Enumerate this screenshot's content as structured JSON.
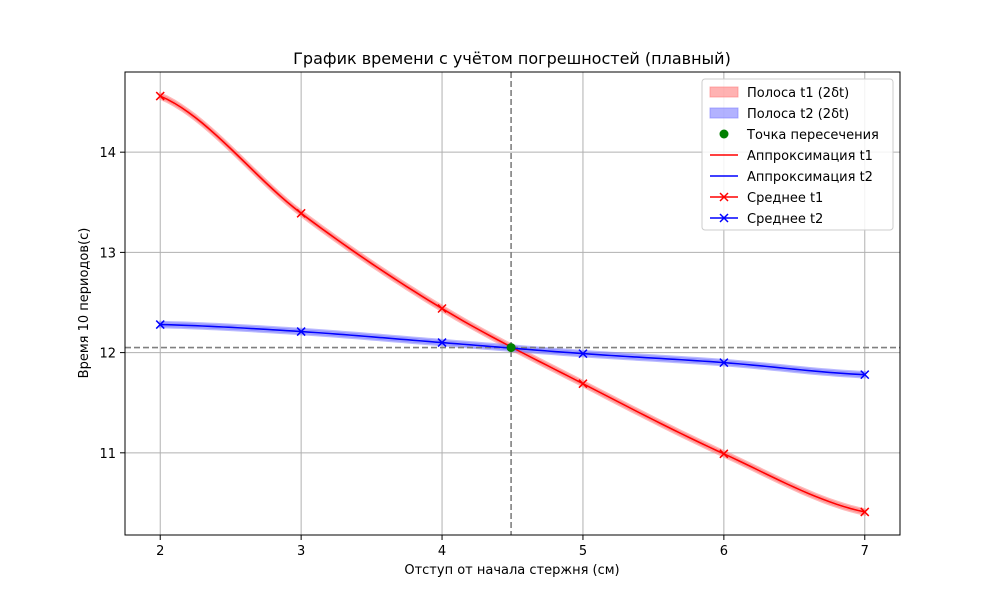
{
  "chart_data": {
    "type": "line",
    "title": "График времени с учётом погрешностей (плавный)",
    "xlabel": "Отступ от начала стержня (см)",
    "ylabel": "Время 10 периодов(с)",
    "xlim": [
      1.75,
      7.25
    ],
    "ylim": [
      10.18,
      14.8
    ],
    "xticks": [
      "2",
      "3",
      "4",
      "5",
      "6",
      "7"
    ],
    "yticks": [
      "11",
      "12",
      "13",
      "14"
    ],
    "grid": true,
    "legend_position": "top-right",
    "x": [
      2,
      3,
      4,
      5,
      6,
      7
    ],
    "series": [
      {
        "name": "Среднее t1",
        "values": [
          14.56,
          13.39,
          12.44,
          11.69,
          10.99,
          10.41
        ],
        "color": "#ff0000",
        "marker": "x"
      },
      {
        "name": "Среднее t2",
        "values": [
          12.28,
          12.21,
          12.1,
          11.99,
          11.9,
          11.78
        ],
        "color": "#0000ff",
        "marker": "x"
      }
    ],
    "fits": [
      {
        "name": "Аппроксимация t1",
        "color": "#ff0000"
      },
      {
        "name": "Аппроксимация t2",
        "color": "#0000ff"
      }
    ],
    "bands": [
      {
        "name": "Полоса t1 (2δt)",
        "half_width": 0.025,
        "color": "#ff7f7f"
      },
      {
        "name": "Полоса t2 (2δt)",
        "half_width": 0.025,
        "color": "#7f7fff"
      }
    ],
    "intersection": {
      "name": "Точка пересечения",
      "x": 4.49,
      "y": 12.05,
      "color": "#008000"
    },
    "legend": [
      "Полоса t1 (2δt)",
      "Полоса t2 (2δt)",
      "Точка пересечения",
      "Аппроксимация t1",
      "Аппроксимация t2",
      "Среднее t1",
      "Среднее t2"
    ]
  }
}
